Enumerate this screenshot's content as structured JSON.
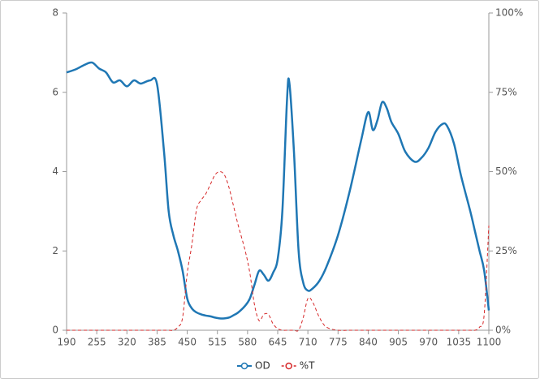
{
  "chart_data": {
    "type": "line",
    "x": [
      190,
      210,
      230,
      245,
      260,
      275,
      290,
      305,
      320,
      335,
      350,
      370,
      385,
      400,
      410,
      420,
      430,
      440,
      450,
      460,
      470,
      480,
      490,
      500,
      510,
      520,
      530,
      540,
      550,
      560,
      575,
      585,
      595,
      605,
      615,
      625,
      635,
      645,
      655,
      665,
      670,
      680,
      690,
      700,
      710,
      720,
      735,
      750,
      775,
      800,
      825,
      840,
      850,
      860,
      870,
      880,
      890,
      905,
      920,
      940,
      955,
      970,
      985,
      1000,
      1010,
      1025,
      1040,
      1060,
      1070,
      1080,
      1090,
      1100
    ],
    "series": [
      {
        "name": "OD",
        "color": "#1f77b4",
        "axis": "y",
        "values": [
          6.5,
          6.58,
          6.7,
          6.75,
          6.6,
          6.5,
          6.25,
          6.3,
          6.15,
          6.3,
          6.22,
          6.3,
          6.2,
          4.5,
          3.0,
          2.4,
          2.0,
          1.5,
          0.8,
          0.55,
          0.45,
          0.4,
          0.37,
          0.35,
          0.32,
          0.3,
          0.3,
          0.32,
          0.38,
          0.45,
          0.62,
          0.8,
          1.15,
          1.5,
          1.4,
          1.25,
          1.45,
          1.8,
          3.0,
          5.8,
          6.25,
          4.5,
          2.0,
          1.2,
          1.0,
          1.05,
          1.25,
          1.6,
          2.4,
          3.5,
          4.8,
          5.5,
          5.05,
          5.3,
          5.75,
          5.6,
          5.25,
          4.95,
          4.5,
          4.25,
          4.35,
          4.6,
          5.0,
          5.2,
          5.15,
          4.7,
          3.9,
          3.0,
          2.5,
          2.0,
          1.5,
          0.5
        ]
      },
      {
        "name": "%T",
        "color": "#d62728",
        "axis": "y2",
        "dashed": true,
        "values": [
          0,
          0,
          0,
          0,
          0,
          0,
          0,
          0,
          0,
          0,
          0,
          0,
          0,
          0,
          0,
          0,
          1,
          4,
          18,
          27,
          38,
          41,
          43,
          46,
          49,
          50,
          49,
          45,
          39,
          33,
          25,
          18,
          8,
          3,
          5,
          5,
          2,
          0.5,
          0,
          0,
          0,
          0,
          0,
          4,
          10,
          9,
          4,
          1,
          0,
          0,
          0,
          0,
          0,
          0,
          0,
          0,
          0,
          0,
          0,
          0,
          0,
          0,
          0,
          0,
          0,
          0,
          0,
          0,
          0,
          1,
          5,
          33
        ]
      }
    ],
    "xlim": [
      190,
      1100
    ],
    "xticks": [
      190,
      255,
      320,
      385,
      450,
      515,
      580,
      645,
      710,
      775,
      840,
      905,
      970,
      1035,
      1100
    ],
    "ylim": [
      0,
      8
    ],
    "yticks": [
      0,
      2,
      4,
      6,
      8
    ],
    "y2lim": [
      0,
      100
    ],
    "y2ticks": [
      {
        "value": 0,
        "label": "0%"
      },
      {
        "value": 25,
        "label": "25%"
      },
      {
        "value": 50,
        "label": "50%"
      },
      {
        "value": 75,
        "label": "75%"
      },
      {
        "value": 100,
        "label": "100%"
      }
    ],
    "grid": false,
    "legend": "bottom"
  }
}
